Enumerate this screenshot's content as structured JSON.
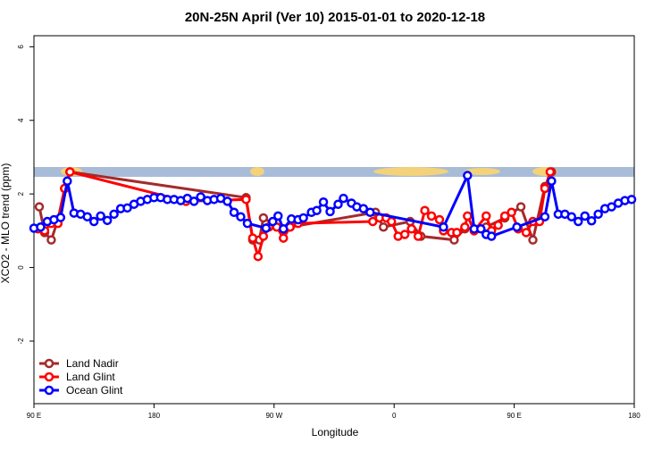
{
  "chart_data": {
    "type": "line",
    "title": "20N-25N April (Ver 10)   2015-01-01 to 2020-12-18",
    "x_label": "Longitude",
    "y_label": "XCO2 - MLO trend (ppm)",
    "xlim": [
      90,
      540
    ],
    "ylim": [
      -3.7,
      6.3
    ],
    "xticks": [
      {
        "value": 90,
        "label": "90 E"
      },
      180,
      {
        "value": 270,
        "label": "90 W"
      },
      {
        "value": 360,
        "label": "0"
      },
      {
        "value": 450,
        "label": "90 E"
      },
      {
        "value": 540,
        "label": "180"
      }
    ],
    "yticks": [
      -2,
      0,
      2,
      4,
      6
    ],
    "legend": "bottom-left",
    "series": [
      {
        "name": "Land Nadir",
        "color": "#a52a2a",
        "x": [
          94,
          98,
          103,
          108,
          113,
          117,
          249,
          254,
          259,
          262,
          277,
          282,
          346,
          352,
          372,
          380,
          405,
          413,
          429,
          443,
          455,
          464,
          473,
          478
        ],
        "values": [
          1.65,
          0.95,
          0.75,
          1.3,
          2.15,
          2.6,
          1.9,
          0.75,
          0.75,
          1.35,
          1.0,
          1.1,
          1.5,
          1.1,
          1.25,
          0.85,
          0.75,
          1.05,
          1.1,
          1.35,
          1.65,
          0.75,
          2.2,
          2.6
        ]
      },
      {
        "name": "Land Glint",
        "color": "#ff0000",
        "x": [
          93,
          98,
          103,
          108,
          113,
          117,
          204,
          249,
          254,
          258,
          262,
          266,
          272,
          277,
          282,
          288,
          344,
          349,
          354,
          358,
          363,
          368,
          373,
          378,
          383,
          388,
          394,
          397,
          403,
          407,
          413,
          415,
          420,
          429,
          433,
          438,
          443,
          448,
          453,
          459,
          464,
          469,
          473,
          477
        ],
        "values": [
          1.05,
          1.0,
          1.2,
          1.2,
          2.15,
          2.6,
          1.8,
          1.85,
          0.8,
          0.3,
          0.85,
          1.1,
          1.1,
          0.8,
          1.1,
          1.2,
          1.25,
          1.35,
          1.35,
          1.25,
          0.85,
          0.9,
          1.05,
          0.85,
          1.55,
          1.4,
          1.3,
          1.0,
          0.95,
          0.95,
          1.1,
          1.4,
          1.0,
          1.4,
          1.0,
          1.15,
          1.4,
          1.5,
          1.05,
          0.95,
          1.25,
          1.25,
          2.15,
          2.6
        ]
      },
      {
        "name": "Ocean Glint",
        "color": "#0000ff",
        "x": [
          90,
          95,
          100,
          105,
          110,
          115,
          120,
          125,
          130,
          135,
          140,
          145,
          150,
          155,
          160,
          165,
          170,
          175,
          180,
          185,
          190,
          195,
          200,
          205,
          210,
          215,
          220,
          225,
          230,
          235,
          240,
          245,
          250,
          264,
          269,
          273,
          277,
          283,
          288,
          292,
          298,
          302,
          307,
          312,
          318,
          322,
          328,
          332,
          337,
          342,
          397,
          415,
          420,
          425,
          429,
          433,
          452,
          473,
          478,
          483,
          488,
          493,
          498,
          503,
          508,
          513,
          518,
          523,
          528,
          533,
          538
        ],
        "values": [
          1.07,
          1.1,
          1.25,
          1.3,
          1.36,
          2.35,
          1.48,
          1.45,
          1.38,
          1.25,
          1.4,
          1.28,
          1.45,
          1.6,
          1.62,
          1.72,
          1.8,
          1.85,
          1.9,
          1.9,
          1.85,
          1.85,
          1.82,
          1.88,
          1.8,
          1.92,
          1.82,
          1.85,
          1.88,
          1.8,
          1.5,
          1.38,
          1.2,
          1.07,
          1.25,
          1.4,
          1.05,
          1.32,
          1.3,
          1.35,
          1.5,
          1.55,
          1.78,
          1.52,
          1.72,
          1.88,
          1.75,
          1.65,
          1.6,
          1.5,
          1.1,
          2.5,
          1.05,
          1.05,
          0.9,
          0.85,
          1.1,
          1.38,
          2.35,
          1.45,
          1.45,
          1.38,
          1.25,
          1.4,
          1.27,
          1.45,
          1.6,
          1.65,
          1.75,
          1.82,
          1.85
        ]
      }
    ]
  }
}
